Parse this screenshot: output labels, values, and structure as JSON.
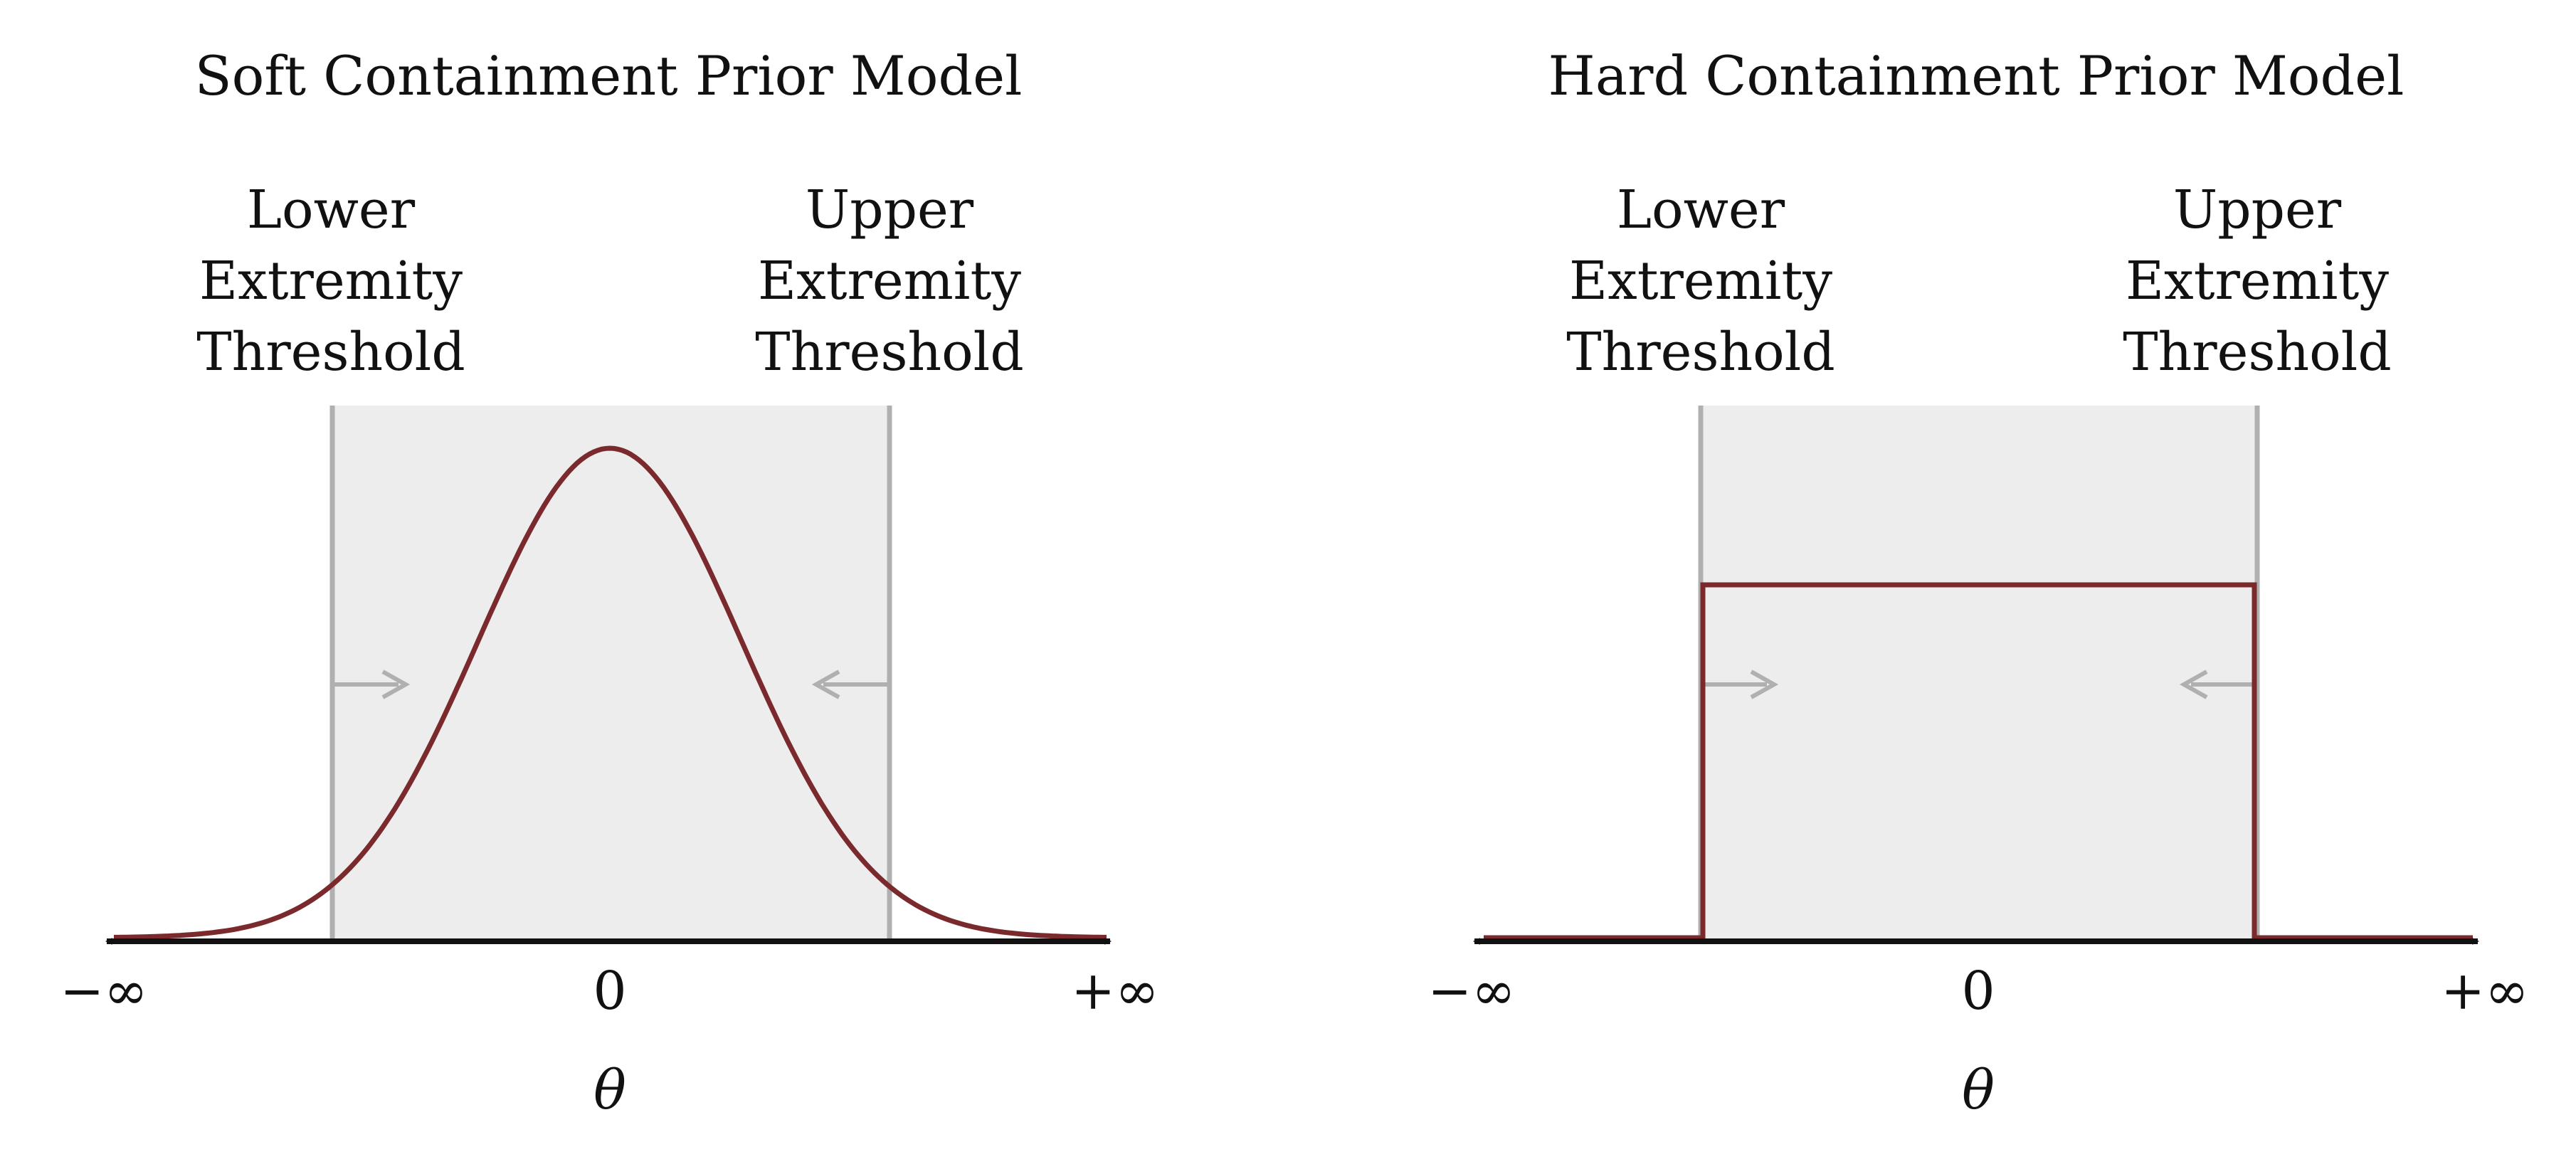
{
  "colors": {
    "curve": "#7a2a2c",
    "threshold_line": "#b0b0b0",
    "band_fill": "#ededed",
    "axis": "#111111"
  },
  "panels": [
    {
      "title": "Soft Containment Prior Model",
      "curve": "gaussian",
      "lower_label": [
        "Lower",
        "Extremity",
        "Threshold"
      ],
      "upper_label": [
        "Upper",
        "Extremity",
        "Threshold"
      ],
      "ticks": {
        "left": "−∞",
        "center": "0",
        "right": "+∞"
      },
      "axis_var": "θ"
    },
    {
      "title": "Hard Containment Prior Model",
      "curve": "uniform",
      "lower_label": [
        "Lower",
        "Extremity",
        "Threshold"
      ],
      "upper_label": [
        "Upper",
        "Extremity",
        "Threshold"
      ],
      "ticks": {
        "left": "−∞",
        "center": "0",
        "right": "+∞"
      },
      "axis_var": "θ"
    }
  ]
}
